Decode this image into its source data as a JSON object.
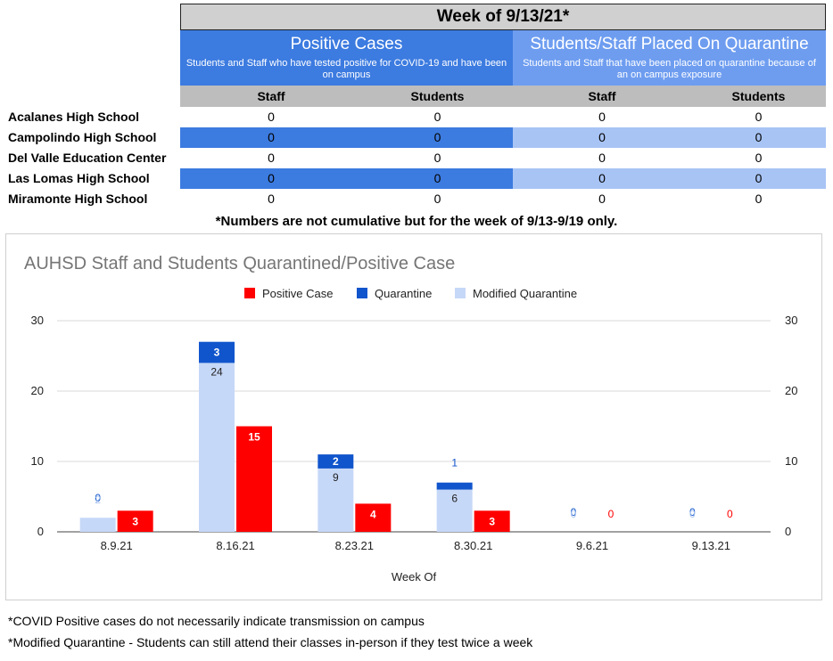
{
  "table": {
    "week_title": "Week of 9/13/21*",
    "positive": {
      "title": "Positive Cases",
      "subtitle": "Students and Staff who have tested positive for COVID-19 and have been on campus"
    },
    "quarantine": {
      "title": "Students/Staff Placed On Quarantine",
      "subtitle": "Students and Staff that have been placed on quarantine because of an on campus exposure"
    },
    "columns": [
      "Staff",
      "Students",
      "Staff",
      "Students"
    ],
    "rows": [
      {
        "school": "Acalanes High School",
        "values": [
          "0",
          "0",
          "0",
          "0"
        ]
      },
      {
        "school": "Campolindo High School",
        "values": [
          "0",
          "0",
          "0",
          "0"
        ]
      },
      {
        "school": "Del Valle Education Center",
        "values": [
          "0",
          "0",
          "0",
          "0"
        ]
      },
      {
        "school": "Las Lomas High School",
        "values": [
          "0",
          "0",
          "0",
          "0"
        ]
      },
      {
        "school": "Miramonte High School",
        "values": [
          "0",
          "0",
          "0",
          "0"
        ]
      }
    ],
    "note": "*Numbers are not cumulative but for the week of 9/13-9/19 only."
  },
  "chart_data": {
    "type": "bar",
    "title": "AUHSD Staff and Students Quarantined/Positive Case",
    "xlabel": "Week Of",
    "ylabel": "",
    "ylim": [
      0,
      30
    ],
    "yticks": [
      0,
      10,
      20,
      30
    ],
    "grid": true,
    "legend_position": "top",
    "categories": [
      "8.9.21",
      "8.16.21",
      "8.23.21",
      "8.30.21",
      "9.6.21",
      "9.13.21"
    ],
    "series": [
      {
        "name": "Positive Case",
        "color": "#ff0000",
        "stack": "positive",
        "values": [
          3,
          15,
          4,
          3,
          0,
          0
        ]
      },
      {
        "name": "Quarantine",
        "color": "#1155cc",
        "stack": "quarantine",
        "values": [
          0,
          3,
          2,
          1,
          0,
          0
        ]
      },
      {
        "name": "Modified Quarantine",
        "color": "#c6d8f8",
        "stack": "quarantine",
        "values": [
          2,
          24,
          9,
          6,
          0,
          0
        ]
      }
    ]
  },
  "footnotes": [
    "*COVID Positive cases do not necessarily indicate transmission on campus",
    "*Modified Quarantine - Students can still attend their classes in-person if they test twice a week"
  ]
}
